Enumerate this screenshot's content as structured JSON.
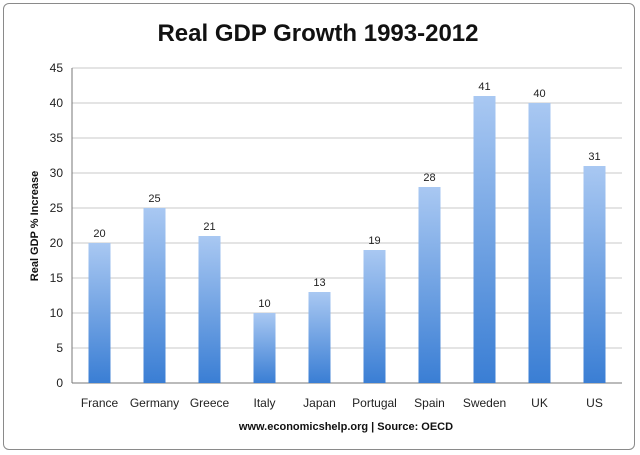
{
  "chart_data": {
    "type": "bar",
    "title": "Real GDP Growth 1993-2012",
    "xlabel": "",
    "ylabel": "Real GDP % Increase",
    "source": "www.economicshelp.org | Source: OECD",
    "categories": [
      "France",
      "Germany",
      "Greece",
      "Italy",
      "Japan",
      "Portugal",
      "Spain",
      "Sweden",
      "UK",
      "US"
    ],
    "values": [
      20,
      25,
      21,
      10,
      13,
      19,
      28,
      41,
      40,
      31
    ],
    "data_labels": [
      "20",
      "25",
      "21",
      "10",
      "13",
      "19",
      "28",
      "41",
      "40",
      "31"
    ],
    "ylim": [
      0,
      45
    ],
    "yticks": [
      0,
      5,
      10,
      15,
      20,
      25,
      30,
      35,
      40,
      45
    ],
    "grid": true,
    "legend": "none",
    "bar_color_top": "#a9c8f2",
    "bar_color_bottom": "#3a7ed4"
  }
}
